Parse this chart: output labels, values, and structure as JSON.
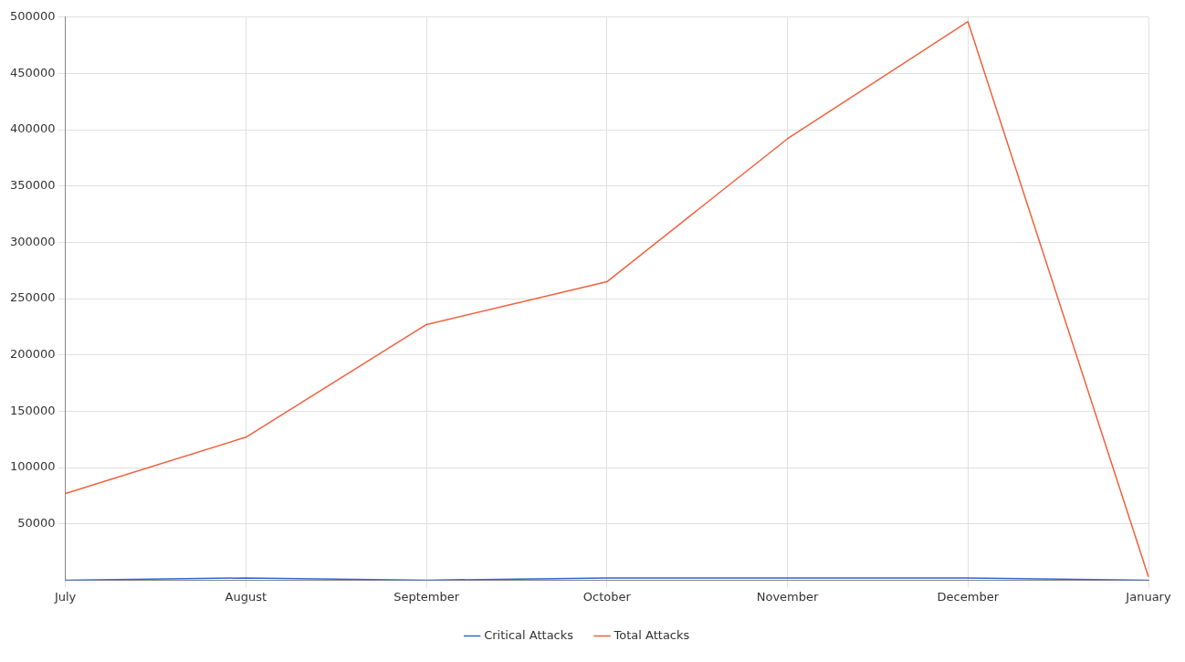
{
  "chart_data": {
    "type": "line",
    "categories": [
      "July",
      "August",
      "September",
      "October",
      "November",
      "December",
      "January"
    ],
    "series": [
      {
        "name": "Critical Attacks",
        "color": "#3366cc",
        "values": [
          0,
          2000,
          0,
          2000,
          2000,
          2000,
          0
        ]
      },
      {
        "name": "Total Attacks",
        "color": "#f0603c",
        "values": [
          77000,
          127000,
          227000,
          265000,
          392000,
          496000,
          3000
        ]
      }
    ],
    "ylim": [
      0,
      500000
    ],
    "yticks": [
      50000,
      100000,
      150000,
      200000,
      250000,
      300000,
      350000,
      400000,
      450000,
      500000
    ],
    "grid": true,
    "legend": "bottom",
    "marker": "none",
    "line_style": "solid"
  }
}
